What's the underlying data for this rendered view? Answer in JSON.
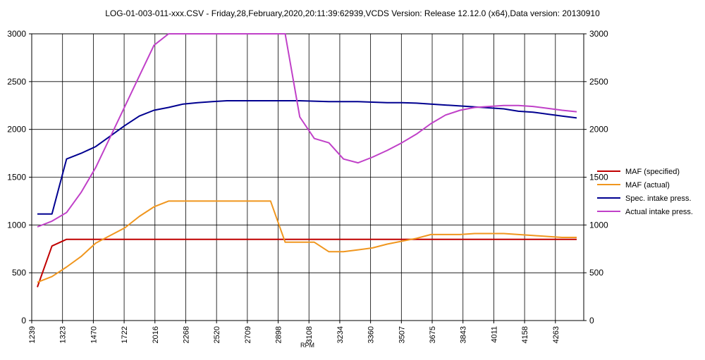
{
  "chart_data": {
    "type": "line",
    "title": "LOG-01-003-011-xxx.CSV - Friday,28,February,2020,20:11:39:62939,VCDS Version: Release 12.12.0 (x64),Data version: 20130910",
    "xlabel": "RPM",
    "ylabel": "",
    "ylim": [
      0,
      3000
    ],
    "y2lim": [
      0,
      3000
    ],
    "y_ticks": [
      0,
      500,
      1000,
      1500,
      2000,
      2500,
      3000
    ],
    "x_tick_labels": [
      "1239",
      "1323",
      "1470",
      "1722",
      "2016",
      "2268",
      "2520",
      "2709",
      "2898",
      "3108",
      "3234",
      "3360",
      "3507",
      "3675",
      "3843",
      "4011",
      "4158",
      "4263"
    ],
    "grid": true,
    "legend_position": "right",
    "series": [
      {
        "name": "MAF (specified)",
        "color": "#c00000",
        "values": [
          350,
          780,
          850,
          850,
          850,
          850,
          850,
          850,
          850,
          850,
          850,
          850,
          850,
          850,
          850,
          850,
          850,
          850,
          850,
          850,
          850,
          850,
          850,
          850,
          850,
          850,
          850,
          850,
          850,
          850,
          850,
          850,
          850,
          850,
          850,
          850,
          850,
          850
        ]
      },
      {
        "name": "MAF (actual)",
        "color": "#f0961e",
        "values": [
          400,
          460,
          560,
          670,
          810,
          890,
          970,
          1090,
          1190,
          1250,
          1250,
          1250,
          1250,
          1250,
          1250,
          1250,
          1250,
          820,
          820,
          820,
          720,
          720,
          740,
          760,
          800,
          830,
          860,
          900,
          900,
          900,
          910,
          910,
          910,
          900,
          890,
          880,
          870,
          870
        ]
      },
      {
        "name": "Spec. intake press.",
        "color": "#000090",
        "values": [
          1115,
          1115,
          1690,
          1750,
          1820,
          1930,
          2040,
          2140,
          2200,
          2230,
          2265,
          2280,
          2290,
          2300,
          2300,
          2300,
          2300,
          2300,
          2300,
          2295,
          2290,
          2290,
          2290,
          2285,
          2280,
          2280,
          2275,
          2265,
          2255,
          2245,
          2235,
          2225,
          2215,
          2190,
          2180,
          2160,
          2140,
          2120
        ]
      },
      {
        "name": "Actual intake press.",
        "color": "#c040c8",
        "values": [
          980,
          1040,
          1130,
          1340,
          1600,
          1920,
          2240,
          2560,
          2880,
          3000,
          3000,
          3000,
          3000,
          3000,
          3000,
          3000,
          3000,
          3000,
          2130,
          1905,
          1860,
          1690,
          1650,
          1710,
          1780,
          1860,
          1950,
          2060,
          2150,
          2200,
          2230,
          2240,
          2250,
          2250,
          2240,
          2220,
          2200,
          2185
        ]
      }
    ]
  }
}
